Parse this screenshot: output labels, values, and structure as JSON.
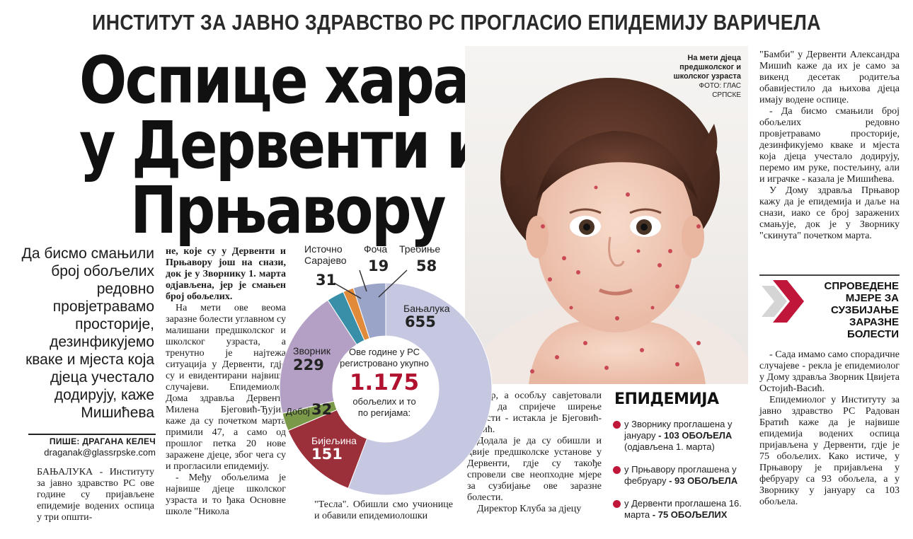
{
  "kicker": "ИНСТИТУТ ЗА ЈАВНО ЗДРАВСТВО РС ПРОГЛАСИО ЕПИДЕМИЈУ ВАРИЧЕЛА",
  "headline": [
    "Оспице харају",
    "у Дервенти и",
    "Прњавору"
  ],
  "lead": "Да бисмо смањили број обољелих редовно провјетравамо просторије, дезинфикујемо кваке и мјеста која дјеца учестало додирују, каже Мишићева",
  "byline": "ПИШЕ: ДРАГАНА КЕЛЕЧ",
  "email": "draganak@glassrpske.com",
  "col1": "БАЊАЛУКА - Институту за јавно здравство РС ове године су пријављене епидемије водених оспица у три општи-",
  "col2": {
    "p1": "не, које су у Дервенти и Прњавору још на снази, док је у Зворнику 1. марта одјављена, јер је смањен број обољелих.",
    "p2": "На мети ове веома заразне болести углавном су малишани предшколског и школског узраста, а тренутно је најтежа ситуација у Дервенти, гдје су и евидентирани највише случајеви. Епидемиолог Дома здравља Дервента Милена Бјеговић-Ђујић каже да су почетком марта примили 47, а само од прошлог петка 20 нове заражене дјеце, због чега су и прогласили епидемију.",
    "p3": "- Међу обољелима је највише дјеце школског узраста и то ђака Основне школе \"Никола"
  },
  "col3": "\"Тесла\". Обишли смо учионице и обавили епидемиолошки",
  "col4": {
    "p1": "надзор, а особљу савјетовали како да спријече ширење болести - истакла је Бјеговић-Ђујић.",
    "p2": "Додала је да су обишли и двије предшколске установе у Дервенти, гдје су такође спровели све неопходне мјере за сузбијање ове заразне болести.",
    "p3": "Директор Клуба за дјецу"
  },
  "col5": {
    "p1": "\"Бамби\" у Дервенти Александра Мишић каже да их је само за викенд десетак родитеља обавијестило да њихова дјеца имају водене оспице.",
    "p2": "- Да бисмо смањили број обољелих редовно провјетравамо просторије, дезинфикујемо кваке и мјеста која дјеца учестало додирују, перемо им руке, постељину, али и играчке - казала је Мишићева.",
    "p3": "У Дому здравља Прњавор кажу да је епидемија и даље на снази, иако се број заражених смањује, док је у Зворнику \"скинута\" почетком марта."
  },
  "box": {
    "title": "СПРОВЕДЕНЕ МЈЕРЕ ЗА СУЗБИЈАЊЕ ЗАРАЗНЕ БОЛЕСТИ",
    "p1": "- Сада имамо само спорадичне случајеве - рекла је епидемиолог у Дому здравља Зворник Цвијета Остојић-Васић.",
    "p2": "Епидемиолог у Институту за јавно здравство РС Радован Братић каже да је највише епидемија водених оспица пријављена у Дервенти, гдје је 75 обољелих. Како истиче, у Прњавору је пријављена у фебруару са 93 обољела, а у Зворнику у јануару са 103 обољела."
  },
  "photo_caption": {
    "title": "На мети дјеца предшколског и школског узраста",
    "credit": "ФОТО: ГЛАС СРПСКЕ"
  },
  "epidemic": {
    "title": "ЕПИДЕМИЈА",
    "items": [
      {
        "text": "у Зворнику проглашена у јануару",
        "bold": "- 103 ОБОЉЕЛА",
        "extra": "(одјављена 1. марта)"
      },
      {
        "text": "у Прњавору проглашена у фебруару",
        "bold": "- 93 ОБОЉЕЛА",
        "extra": ""
      },
      {
        "text": "у Дервенти проглашена 16. марта",
        "bold": "- 75 ОБОЉЕЛИХ",
        "extra": ""
      }
    ],
    "dot_color": "#c0163a"
  },
  "chart_data": {
    "type": "pie",
    "center_text": {
      "line1": "Ове године у РС",
      "line2": "регистровано укупно",
      "total": "1.175",
      "line3": "обољелих и то",
      "line4": "по регијама:"
    },
    "categories": [
      "Бањалука",
      "Бијељина",
      "Добој",
      "Зворник",
      "Источно Сарајево",
      "Фоча",
      "Требиње"
    ],
    "values": [
      655,
      151,
      32,
      229,
      31,
      19,
      58
    ],
    "colors": [
      "#c5c8e0",
      "#9b2f3a",
      "#7a9a4a",
      "#b3a0c4",
      "#3a8fa8",
      "#e08a3a",
      "#9aa3c8"
    ],
    "total_color": "#b0122f"
  }
}
